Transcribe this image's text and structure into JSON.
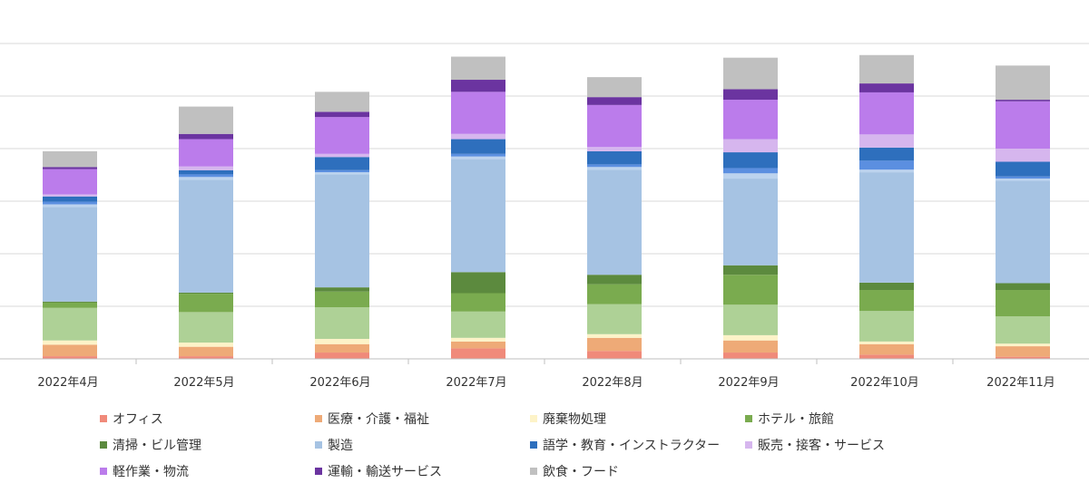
{
  "chart_data": {
    "type": "bar",
    "stacked": true,
    "categories": [
      "2022年4月",
      "2022年5月",
      "2022年6月",
      "2022年7月",
      "2022年8月",
      "2022年9月",
      "2022年10月",
      "2022年11月"
    ],
    "ylim": [
      0,
      7
    ],
    "grid": true,
    "legend_position": "bottom",
    "series": [
      {
        "name": "オフィス",
        "color": "#f08a7a",
        "values": [
          0.05,
          0.05,
          0.12,
          0.2,
          0.15,
          0.12,
          0.08,
          0.04
        ]
      },
      {
        "name": "医療・介護・福祉",
        "color": "#eeaa77",
        "values": [
          0.22,
          0.18,
          0.16,
          0.13,
          0.25,
          0.23,
          0.2,
          0.2
        ]
      },
      {
        "name": "廃棄物処理",
        "color": "#fdf3c8",
        "values": [
          0.08,
          0.08,
          0.1,
          0.07,
          0.07,
          0.1,
          0.05,
          0.05
        ]
      },
      {
        "name": "ホテル・旅館",
        "color": "#aed196",
        "values": [
          0.62,
          0.58,
          0.6,
          0.5,
          0.57,
          0.58,
          0.58,
          0.52
        ]
      },
      {
        "name": "ホテル・旅館",
        "color": "#7aab4f",
        "values": [
          0.1,
          0.35,
          0.3,
          0.35,
          0.38,
          0.57,
          0.4,
          0.5
        ]
      },
      {
        "name": "清掃・ビル管理",
        "color": "#5c8a3e",
        "values": [
          0.02,
          0.02,
          0.08,
          0.4,
          0.18,
          0.18,
          0.14,
          0.13
        ]
      },
      {
        "name": "製造",
        "color": "#a6c3e3",
        "values": [
          1.8,
          2.15,
          2.15,
          2.15,
          2.0,
          1.65,
          2.1,
          1.95
        ]
      },
      {
        "name": "製造",
        "color": "#bcd3ee",
        "values": [
          0.05,
          0.05,
          0.04,
          0.05,
          0.05,
          0.1,
          0.05,
          0.04
        ]
      },
      {
        "name": "語学・教育・インストラクター",
        "color": "#5b8fe0",
        "values": [
          0.05,
          0.05,
          0.04,
          0.05,
          0.05,
          0.1,
          0.17,
          0.04
        ]
      },
      {
        "name": "語学・教育・インストラクター",
        "color": "#2e6fbd",
        "values": [
          0.1,
          0.08,
          0.25,
          0.28,
          0.25,
          0.3,
          0.25,
          0.28
        ]
      },
      {
        "name": "販売・接客・サービス",
        "color": "#d6b6ee",
        "values": [
          0.04,
          0.07,
          0.06,
          0.1,
          0.08,
          0.25,
          0.25,
          0.25
        ]
      },
      {
        "name": "軽作業・物流",
        "color": "#bb7ceb",
        "values": [
          0.48,
          0.52,
          0.7,
          0.8,
          0.8,
          0.75,
          0.8,
          0.9
        ]
      },
      {
        "name": "運輸・輸送サービス",
        "color": "#6b34a0",
        "values": [
          0.04,
          0.1,
          0.1,
          0.23,
          0.15,
          0.2,
          0.17,
          0.03
        ]
      },
      {
        "name": "飲食・フード",
        "color": "#c0c0c0",
        "values": [
          0.3,
          0.52,
          0.38,
          0.44,
          0.38,
          0.6,
          0.54,
          0.65
        ]
      }
    ],
    "legend": [
      {
        "label": "オフィス",
        "color": "#f08a7a"
      },
      {
        "label": "医療・介護・福祉",
        "color": "#eeaa77"
      },
      {
        "label": "廃棄物処理",
        "color": "#fdf3c8"
      },
      {
        "label": "ホテル・旅館",
        "color": "#7aab4f"
      },
      {
        "label": "清掃・ビル管理",
        "color": "#5c8a3e"
      },
      {
        "label": "製造",
        "color": "#a6c3e3"
      },
      {
        "label": "語学・教育・インストラクター",
        "color": "#2e6fbd"
      },
      {
        "label": "販売・接客・サービス",
        "color": "#d6b6ee"
      },
      {
        "label": "軽作業・物流",
        "color": "#bb7ceb"
      },
      {
        "label": "運輸・輸送サービス",
        "color": "#6b34a0"
      },
      {
        "label": "飲食・フード",
        "color": "#c0c0c0"
      }
    ]
  }
}
